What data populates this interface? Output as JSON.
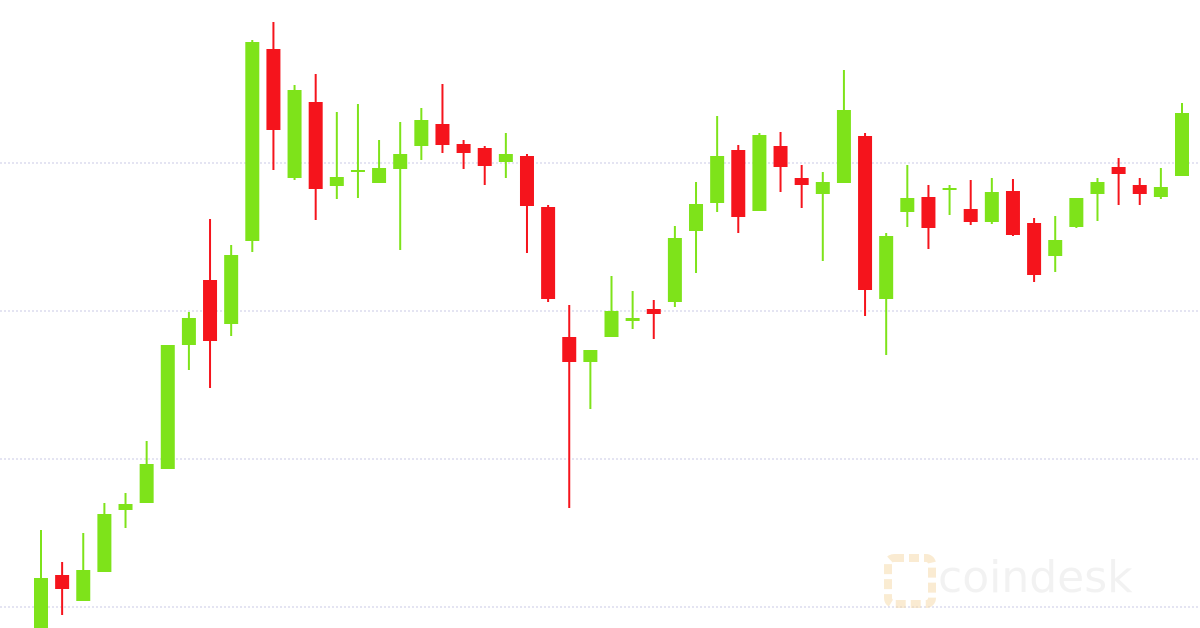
{
  "chart_data": {
    "type": "candlestick",
    "open": [
      0,
      53,
      27,
      56,
      118,
      125,
      159,
      283,
      348,
      304,
      387,
      579,
      450,
      526,
      442,
      456,
      445,
      459,
      482,
      504,
      484,
      480,
      466,
      472,
      421,
      291,
      266,
      291,
      307,
      319,
      326,
      397,
      425,
      478,
      417,
      482,
      450,
      434,
      445,
      492,
      329,
      416,
      431,
      439,
      419,
      406,
      437,
      405,
      372,
      401,
      434,
      461,
      443,
      431,
      452
    ],
    "high": [
      98,
      66,
      95,
      125,
      135,
      187,
      283,
      316,
      409,
      383,
      588,
      606,
      543,
      554,
      516,
      524,
      488,
      506,
      520,
      544,
      488,
      482,
      495,
      474,
      423,
      323,
      278,
      352,
      337,
      328,
      402,
      446,
      512,
      483,
      495,
      496,
      463,
      456,
      558,
      495,
      395,
      463,
      443,
      443,
      448,
      450,
      449,
      410,
      412,
      430,
      450,
      470,
      450,
      460,
      525
    ],
    "low": [
      0,
      13,
      27,
      56,
      100,
      125,
      159,
      258,
      240,
      292,
      376,
      458,
      448,
      408,
      429,
      430,
      445,
      378,
      468,
      475,
      459,
      443,
      450,
      375,
      326,
      120,
      219,
      291,
      299,
      289,
      321,
      355,
      416,
      395,
      417,
      436,
      420,
      367,
      445,
      312,
      273,
      401,
      379,
      413,
      403,
      404,
      392,
      346,
      356,
      400,
      407,
      423,
      423,
      429,
      452
    ],
    "close": [
      50,
      39,
      58,
      114,
      124,
      164,
      283,
      310,
      287,
      373,
      586,
      498,
      538,
      439,
      451,
      458,
      460,
      474,
      508,
      483,
      475,
      462,
      474,
      422,
      329,
      266,
      278,
      317,
      310,
      314,
      390,
      424,
      472,
      411,
      493,
      461,
      443,
      446,
      518,
      338,
      392,
      430,
      400,
      440,
      406,
      436,
      393,
      353,
      388,
      430,
      446,
      454,
      434,
      441,
      515
    ],
    "up_color": "#7ee31a",
    "down_color": "#f5141c",
    "ylim": [
      0,
      628
    ],
    "grid_lines": [
      21,
      169,
      317,
      465
    ],
    "grid": true,
    "watermark": "coindesk"
  }
}
